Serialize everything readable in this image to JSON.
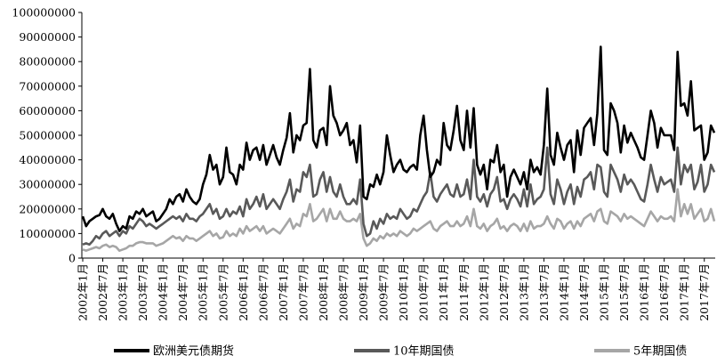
{
  "chart_data": {
    "type": "line",
    "title": "",
    "xlabel": "",
    "ylabel": "",
    "ylim": [
      0,
      100000000
    ],
    "yticks": [
      0,
      10000000,
      20000000,
      30000000,
      40000000,
      50000000,
      60000000,
      70000000,
      80000000,
      90000000,
      100000000
    ],
    "ytick_labels": [
      "0",
      "10000000",
      "20000000",
      "30000000",
      "40000000",
      "50000000",
      "60000000",
      "70000000",
      "80000000",
      "90000000",
      "100000000"
    ],
    "xtick_labels": [
      "2002年1月",
      "2002年7月",
      "2003年1月",
      "2003年7月",
      "2004年1月",
      "2004年7月",
      "2005年1月",
      "2005年7月",
      "2006年1月",
      "2006年7月",
      "2007年1月",
      "2007年7月",
      "2008年1月",
      "2008年7月",
      "2009年1月",
      "2009年7月",
      "2010年1月",
      "2010年7月",
      "2011年1月",
      "2011年7月",
      "2012年1月",
      "2012年7月",
      "2013年1月",
      "2013年7月",
      "2014年1月",
      "2014年7月",
      "2015年1月",
      "2015年7月",
      "2016年1月",
      "2016年7月",
      "2017年1月",
      "2017年7月"
    ],
    "grid": false,
    "legend_position": "bottom",
    "series": [
      {
        "name": "欧洲美元债期货",
        "color": "#000000",
        "values": [
          17000000,
          13000000,
          15000000,
          16000000,
          17000000,
          17500000,
          20000000,
          17000000,
          16000000,
          18000000,
          14000000,
          11000000,
          13000000,
          12000000,
          17000000,
          16000000,
          19000000,
          18000000,
          20000000,
          17000000,
          18000000,
          19000000,
          15000000,
          16000000,
          18000000,
          20000000,
          24000000,
          22000000,
          25000000,
          26000000,
          23000000,
          28000000,
          25000000,
          23000000,
          22000000,
          24000000,
          30000000,
          34000000,
          42000000,
          36000000,
          38000000,
          30000000,
          33000000,
          45000000,
          35000000,
          34000000,
          30000000,
          38000000,
          36000000,
          47000000,
          40000000,
          44000000,
          45000000,
          40000000,
          46000000,
          38000000,
          42000000,
          46000000,
          41000000,
          38000000,
          44000000,
          49000000,
          59000000,
          43000000,
          50000000,
          48000000,
          54000000,
          55000000,
          77000000,
          48000000,
          45000000,
          52000000,
          53000000,
          46000000,
          70000000,
          58000000,
          55000000,
          50000000,
          52000000,
          55000000,
          46000000,
          48000000,
          39000000,
          54000000,
          25000000,
          24000000,
          30000000,
          29000000,
          34000000,
          30000000,
          35000000,
          50000000,
          42000000,
          35000000,
          38000000,
          40000000,
          36000000,
          35000000,
          37000000,
          38000000,
          36000000,
          50000000,
          58000000,
          44000000,
          33000000,
          35000000,
          40000000,
          38000000,
          55000000,
          46000000,
          44000000,
          52000000,
          62000000,
          48000000,
          44000000,
          60000000,
          45000000,
          61000000,
          38000000,
          34000000,
          38000000,
          28000000,
          40000000,
          39000000,
          46000000,
          35000000,
          38000000,
          25000000,
          33000000,
          36000000,
          33000000,
          30000000,
          35000000,
          28000000,
          40000000,
          35000000,
          37000000,
          34000000,
          46000000,
          69000000,
          42000000,
          38000000,
          51000000,
          45000000,
          40000000,
          46000000,
          48000000,
          35000000,
          52000000,
          42000000,
          53000000,
          55000000,
          57000000,
          46000000,
          59000000,
          86000000,
          44000000,
          42000000,
          63000000,
          60000000,
          55000000,
          43000000,
          54000000,
          47000000,
          51000000,
          48000000,
          45000000,
          41000000,
          40000000,
          50000000,
          60000000,
          55000000,
          45000000,
          53000000,
          50000000,
          50000000,
          50000000,
          44000000,
          84000000,
          62000000,
          63000000,
          58000000,
          72000000,
          52000000,
          53000000,
          54000000,
          40000000,
          43000000,
          54000000,
          51000000
        ]
      },
      {
        "name": "10年期国债",
        "color": "#595959",
        "values": [
          5500000,
          6000000,
          5500000,
          7000000,
          9000000,
          8000000,
          10000000,
          11000000,
          9000000,
          10000000,
          11000000,
          9000000,
          11000000,
          10000000,
          13000000,
          12000000,
          14000000,
          16000000,
          15000000,
          13000000,
          14000000,
          13000000,
          12000000,
          13000000,
          14000000,
          15000000,
          16000000,
          17000000,
          16000000,
          17000000,
          15000000,
          18000000,
          16000000,
          16000000,
          15000000,
          17000000,
          18000000,
          20000000,
          22000000,
          18000000,
          20000000,
          16000000,
          17000000,
          20000000,
          17000000,
          19000000,
          18000000,
          21000000,
          17000000,
          24000000,
          20000000,
          22000000,
          25000000,
          21000000,
          26000000,
          20000000,
          22000000,
          24000000,
          22000000,
          20000000,
          24000000,
          27000000,
          32000000,
          23000000,
          28000000,
          27000000,
          35000000,
          33000000,
          38000000,
          25000000,
          26000000,
          32000000,
          35000000,
          27000000,
          33000000,
          27000000,
          25000000,
          30000000,
          25000000,
          22000000,
          22000000,
          24000000,
          22000000,
          32000000,
          14000000,
          9000000,
          10000000,
          15000000,
          12000000,
          16000000,
          14000000,
          18000000,
          16000000,
          17000000,
          16000000,
          20000000,
          18000000,
          16000000,
          17000000,
          20000000,
          19000000,
          22000000,
          25000000,
          27000000,
          35000000,
          25000000,
          23000000,
          26000000,
          28000000,
          30000000,
          26000000,
          25000000,
          30000000,
          25000000,
          26000000,
          32000000,
          24000000,
          40000000,
          25000000,
          23000000,
          26000000,
          21000000,
          26000000,
          28000000,
          33000000,
          23000000,
          24000000,
          20000000,
          24000000,
          26000000,
          24000000,
          21000000,
          28000000,
          21000000,
          30000000,
          22000000,
          24000000,
          25000000,
          28000000,
          45000000,
          26000000,
          22000000,
          32000000,
          28000000,
          22000000,
          27000000,
          30000000,
          22000000,
          29000000,
          25000000,
          32000000,
          33000000,
          35000000,
          28000000,
          38000000,
          37000000,
          27000000,
          25000000,
          38000000,
          35000000,
          32000000,
          27000000,
          34000000,
          30000000,
          32000000,
          30000000,
          27000000,
          24000000,
          23000000,
          30000000,
          38000000,
          32000000,
          27000000,
          33000000,
          30000000,
          31000000,
          32000000,
          27000000,
          45000000,
          30000000,
          38000000,
          35000000,
          38000000,
          28000000,
          31000000,
          38000000,
          27000000,
          30000000,
          38000000,
          35000000
        ]
      },
      {
        "name": "5年期国债",
        "color": "#a6a6a6",
        "values": [
          3500000,
          3000000,
          3500000,
          4000000,
          4500000,
          4000000,
          5000000,
          5500000,
          4500000,
          5000000,
          4500000,
          3000000,
          3500000,
          4000000,
          5000000,
          5000000,
          6000000,
          6500000,
          6500000,
          6000000,
          6000000,
          6000000,
          5000000,
          5500000,
          6000000,
          7000000,
          8000000,
          9000000,
          8000000,
          8500000,
          7000000,
          9000000,
          8000000,
          8000000,
          7000000,
          8000000,
          9000000,
          10000000,
          11000000,
          9000000,
          10000000,
          8000000,
          8500000,
          11000000,
          9000000,
          10000000,
          9000000,
          12000000,
          10000000,
          13000000,
          11000000,
          12000000,
          13000000,
          11000000,
          13000000,
          10000000,
          11000000,
          12000000,
          11000000,
          10000000,
          12000000,
          14000000,
          16000000,
          12000000,
          14000000,
          13000000,
          18000000,
          17000000,
          22000000,
          15000000,
          16000000,
          18000000,
          20000000,
          15000000,
          20000000,
          16000000,
          16000000,
          19000000,
          16000000,
          15000000,
          15000000,
          16000000,
          15000000,
          18000000,
          8000000,
          5000000,
          6000000,
          8000000,
          7000000,
          9000000,
          8000000,
          10000000,
          9000000,
          10000000,
          9000000,
          11000000,
          10000000,
          9000000,
          10000000,
          12000000,
          11000000,
          12000000,
          13000000,
          14000000,
          15000000,
          12000000,
          11000000,
          13000000,
          14000000,
          15000000,
          13000000,
          13000000,
          15000000,
          13000000,
          14000000,
          17000000,
          13000000,
          20000000,
          13000000,
          12000000,
          14000000,
          11000000,
          13000000,
          14000000,
          16000000,
          12000000,
          13000000,
          11000000,
          13000000,
          14000000,
          13000000,
          11000000,
          14000000,
          11000000,
          15000000,
          12000000,
          13000000,
          13000000,
          14000000,
          17000000,
          14000000,
          12000000,
          16000000,
          15000000,
          12000000,
          14000000,
          15000000,
          12000000,
          15000000,
          13000000,
          16000000,
          17000000,
          18000000,
          15000000,
          19000000,
          20000000,
          15000000,
          14000000,
          19000000,
          18000000,
          17000000,
          15000000,
          18000000,
          16000000,
          17000000,
          16000000,
          15000000,
          14000000,
          13000000,
          16000000,
          19000000,
          17000000,
          15000000,
          17000000,
          16000000,
          16000000,
          17000000,
          15000000,
          28000000,
          17000000,
          22000000,
          18000000,
          22000000,
          16000000,
          18000000,
          20000000,
          15000000,
          16000000,
          20000000,
          15000000
        ]
      }
    ]
  }
}
